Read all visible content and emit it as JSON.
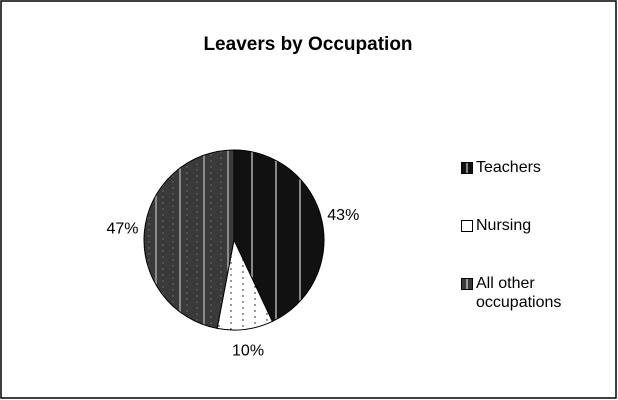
{
  "chart_data": {
    "type": "pie",
    "title": "Leavers by Occupation",
    "categories": [
      "Teachers",
      "Nursing",
      "All other occupations"
    ],
    "values": [
      43,
      10,
      47
    ],
    "value_labels": [
      "43%",
      "10%",
      "47%"
    ],
    "colors": [
      "#111111",
      "#ffffff",
      "#3a3a3a"
    ],
    "legend": "right"
  }
}
